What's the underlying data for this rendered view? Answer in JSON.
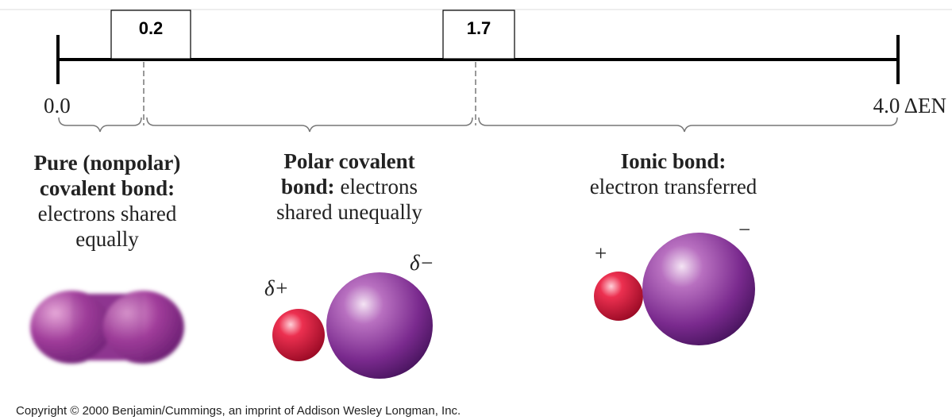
{
  "scale": {
    "markers": [
      "0.2",
      "1.7"
    ],
    "start": "0.0",
    "end": "4.0 ΔEN"
  },
  "regions": [
    {
      "title": [
        "Pure (nonpolar)",
        "covalent bond:"
      ],
      "description": [
        "electrons shared",
        "equally"
      ]
    },
    {
      "title": [
        "Polar covalent",
        "bond:"
      ],
      "description": [
        "electrons",
        "shared unequally"
      ]
    },
    {
      "title": [
        "Ionic bond:"
      ],
      "description": [
        "electron transferred"
      ]
    }
  ],
  "charges": {
    "polar_positive": "δ+",
    "polar_negative": "δ−",
    "ionic_positive": "+",
    "ionic_negative": "−"
  },
  "copyright": "Copyright © 2000 Benjamin/Cummings, an imprint of Addison Wesley Longman, Inc."
}
